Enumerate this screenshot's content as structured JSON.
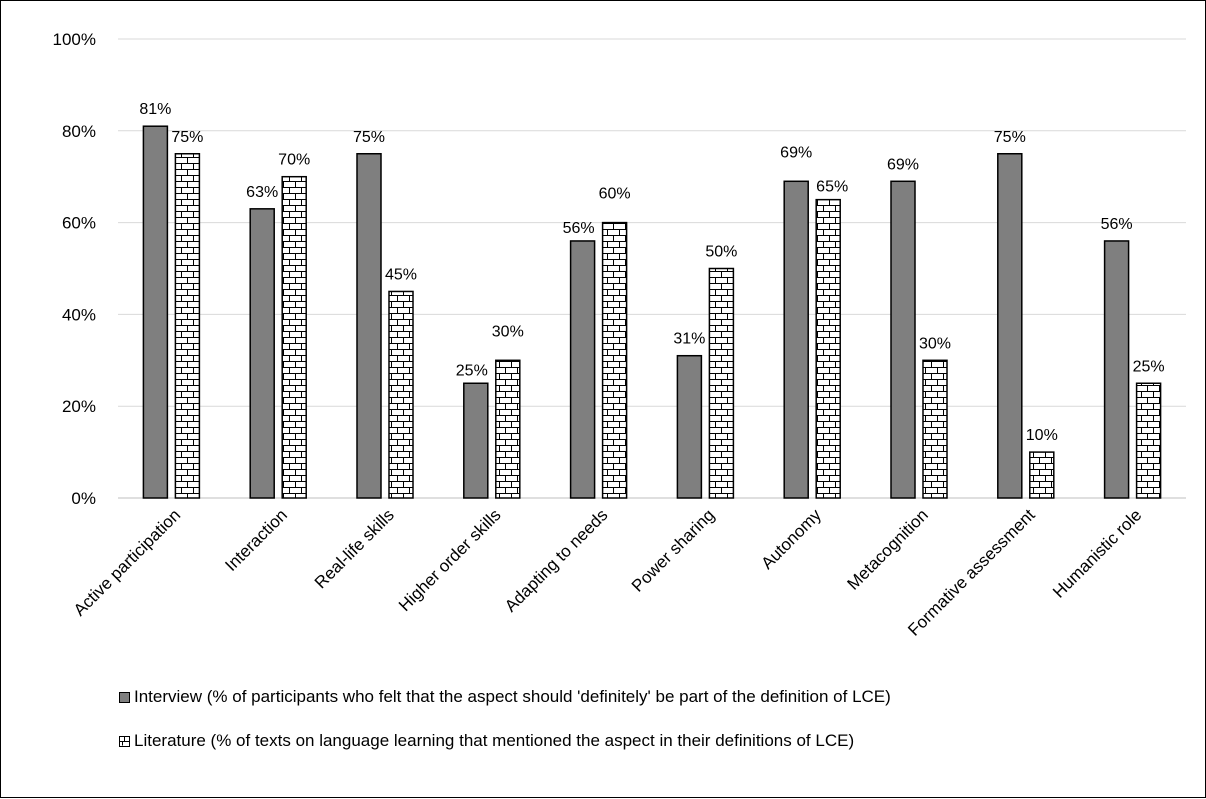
{
  "chart_data": {
    "type": "bar",
    "categories": [
      "Active participation",
      "Interaction",
      "Real-life skills",
      "Higher order skills",
      "Adapting to needs",
      "Power sharing",
      "Autonomy",
      "Metacognition",
      "Formative assessment",
      "Humanistic role"
    ],
    "series": [
      {
        "name": "Interview (% of participants who felt that the aspect should 'definitely' be part of the definition of LCE)",
        "values": [
          81,
          63,
          75,
          25,
          56,
          31,
          69,
          69,
          75,
          56
        ],
        "labels": [
          "81%",
          "63%",
          "75%",
          "25%",
          "56%",
          "31%",
          "69%",
          "69%",
          "75%",
          "56%"
        ],
        "color": "#7f7f7f",
        "pattern": "solid"
      },
      {
        "name": "Literature (% of texts on language learning that mentioned the aspect in their definitions of LCE)",
        "values": [
          75,
          70,
          45,
          30,
          60,
          50,
          65,
          30,
          10,
          25
        ],
        "labels": [
          "75%",
          "70%",
          "45%",
          "30%",
          "60%",
          "50%",
          "65%",
          "30%",
          "10%",
          "25%"
        ],
        "color": "#ffffff",
        "pattern": "brick"
      }
    ],
    "yticks": [
      0,
      20,
      40,
      60,
      80,
      100
    ],
    "ytick_labels": [
      "0%",
      "20%",
      "40%",
      "60%",
      "80%",
      "100%"
    ],
    "ylim": [
      0,
      100
    ],
    "title": "",
    "xlabel": "",
    "ylabel": "",
    "grid": true,
    "legend": "bottom"
  }
}
